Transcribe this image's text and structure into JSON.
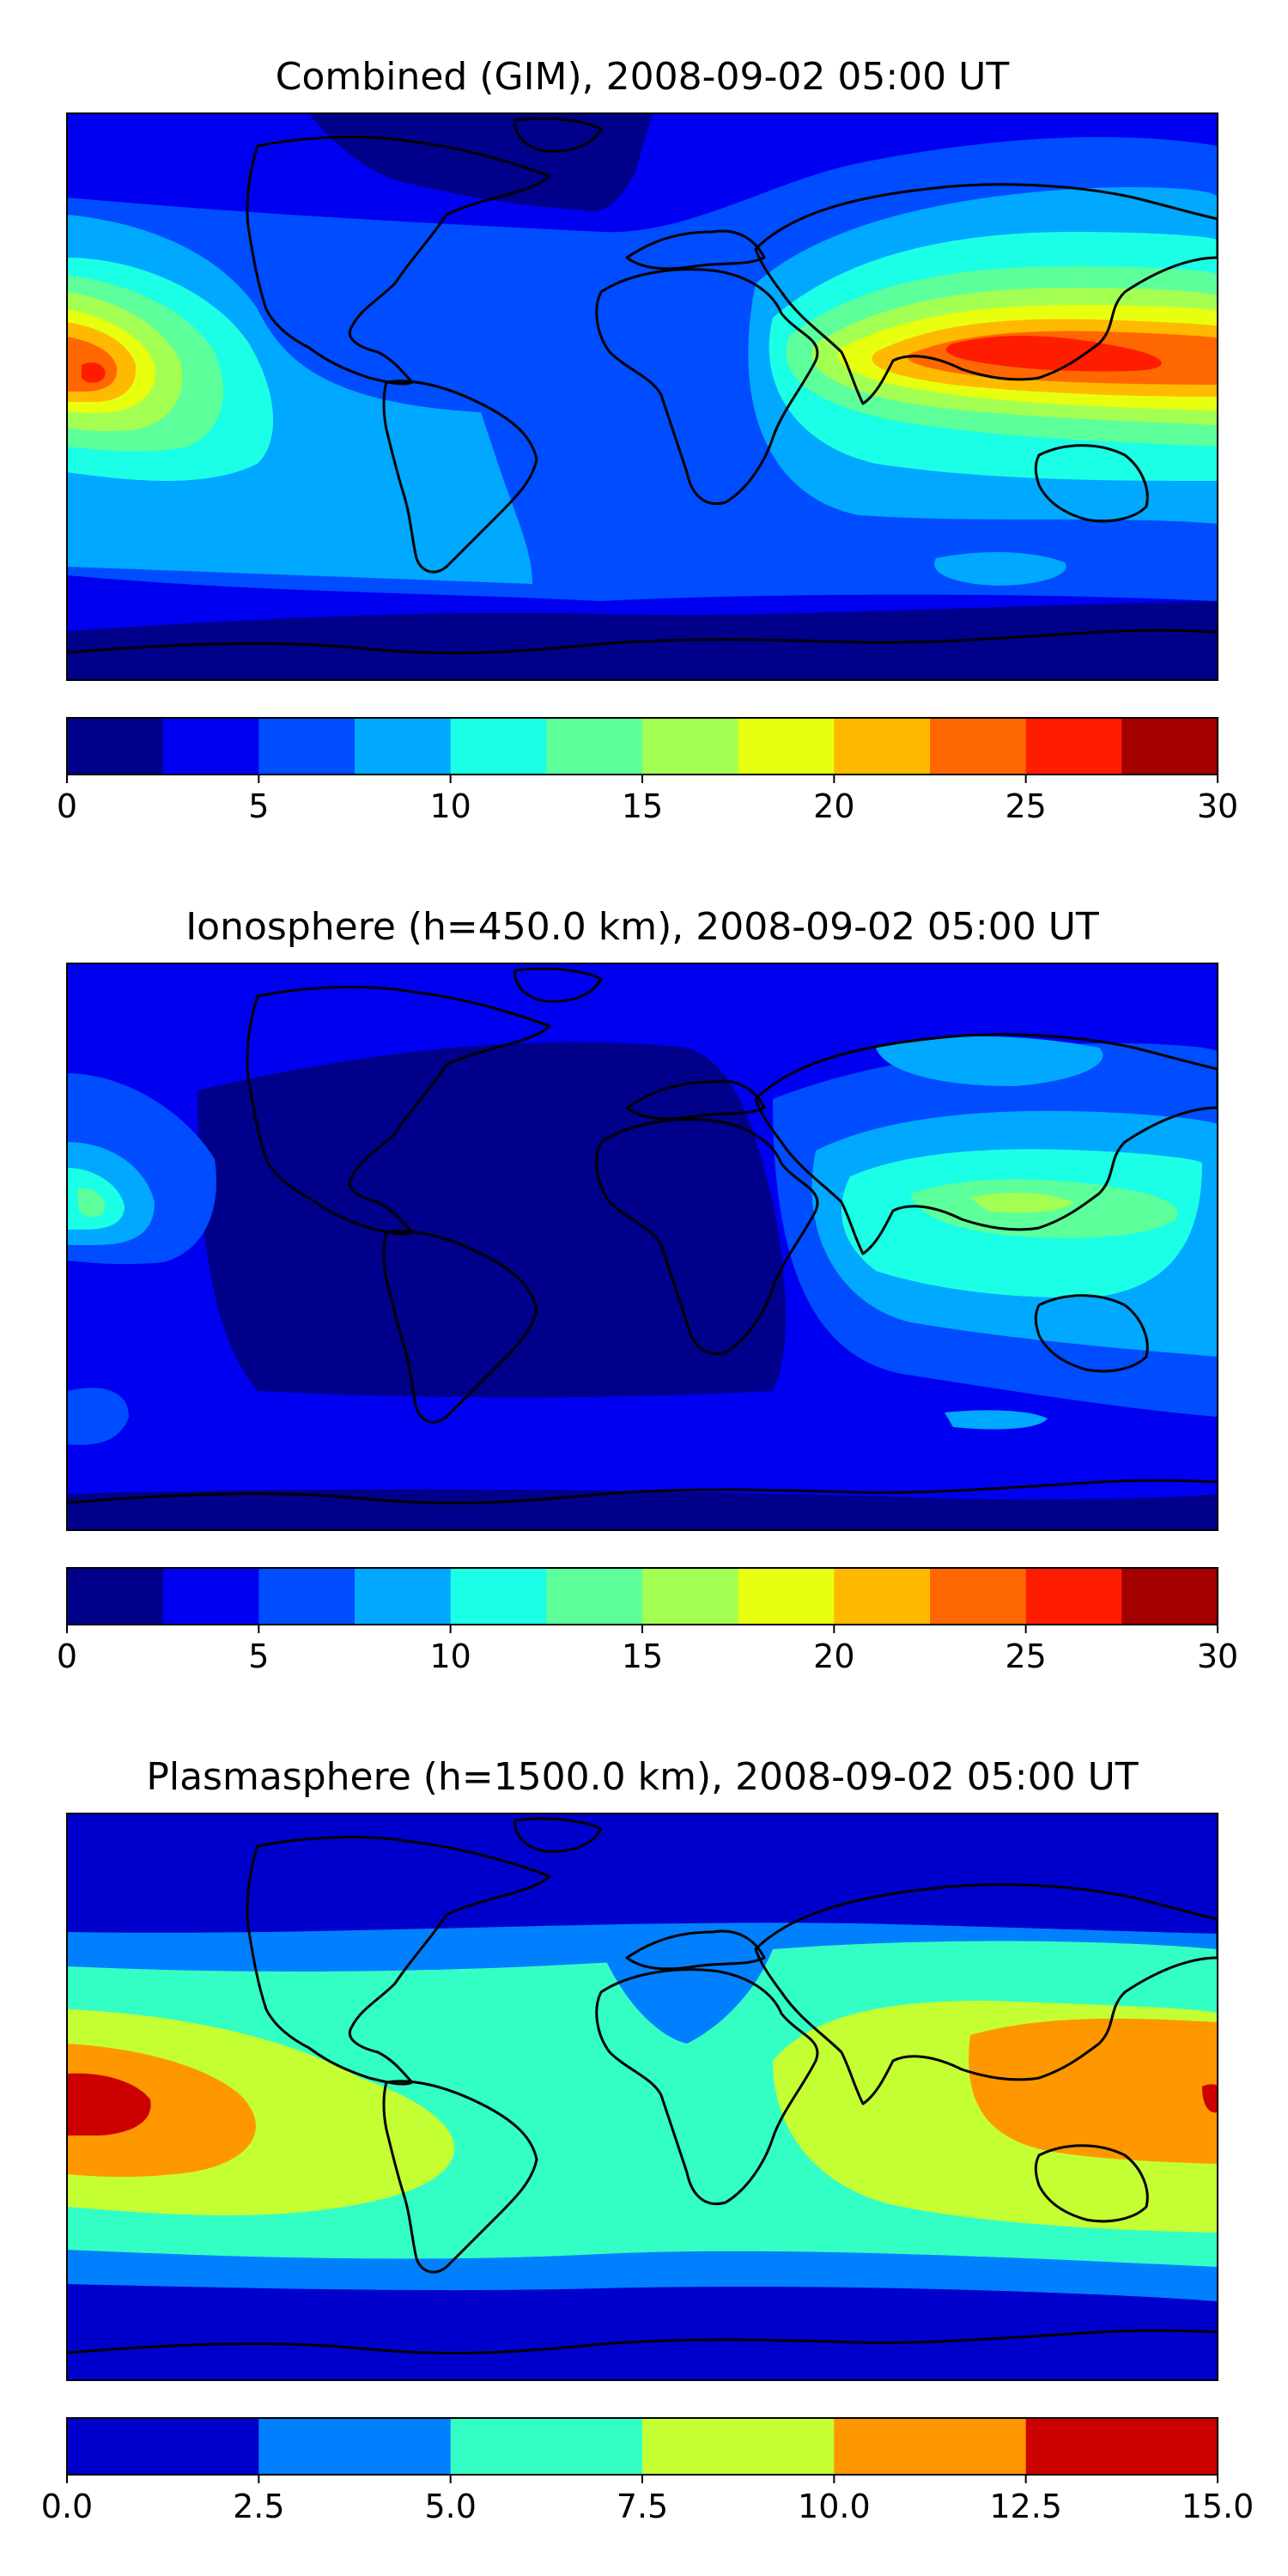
{
  "chart_data": [
    {
      "type": "heatmap",
      "title": "Combined (GIM), 2008-09-02 05:00 UT",
      "map": "world-coastlines",
      "colormap": "jet",
      "levels": [
        0,
        2.5,
        5,
        7.5,
        10,
        12.5,
        15,
        17.5,
        20,
        22.5,
        25,
        27.5,
        30
      ],
      "colors": [
        "#00008a",
        "#0000f1",
        "#004cff",
        "#00a8ff",
        "#1affe5",
        "#5dff9a",
        "#a4ff53",
        "#e8ff0f",
        "#ffb900",
        "#ff6800",
        "#ff1d00",
        "#a40000"
      ],
      "colorbar": {
        "ticks": [
          0,
          5,
          10,
          15,
          20,
          25,
          30
        ],
        "tick_labels": [
          "0",
          "5",
          "10",
          "15",
          "20",
          "25",
          "30"
        ]
      },
      "features": [
        {
          "name": "Central Pacific maximum",
          "level": 24
        },
        {
          "name": "Southeast Asia maximum",
          "level": 26
        },
        {
          "name": "Polar minima",
          "level": 2
        }
      ]
    },
    {
      "type": "heatmap",
      "title": "Ionosphere  (h=450.0 km), 2008-09-02 05:00 UT",
      "map": "world-coastlines",
      "colormap": "jet",
      "levels": [
        0,
        2.5,
        5,
        7.5,
        10,
        12.5,
        15,
        17.5,
        20,
        22.5,
        25,
        27.5,
        30
      ],
      "colors": [
        "#00008a",
        "#0000f1",
        "#004cff",
        "#00a8ff",
        "#1affe5",
        "#5dff9a",
        "#a4ff53",
        "#e8ff0f",
        "#ffb900",
        "#ff6800",
        "#ff1d00",
        "#a40000"
      ],
      "colorbar": {
        "ticks": [
          0,
          5,
          10,
          15,
          20,
          25,
          30
        ],
        "tick_labels": [
          "0",
          "5",
          "10",
          "15",
          "20",
          "25",
          "30"
        ]
      },
      "features": [
        {
          "name": "Southeast Asia maximum",
          "level": 15
        },
        {
          "name": "Central Pacific maximum",
          "level": 14
        },
        {
          "name": "Atlantic / Americas minimum",
          "level": 1
        }
      ]
    },
    {
      "type": "heatmap",
      "title": "Plasmasphere (h=1500.0 km), 2008-09-02 05:00 UT",
      "map": "world-coastlines",
      "colormap": "jet",
      "levels": [
        0,
        2.5,
        5,
        7.5,
        10,
        12.5,
        15
      ],
      "colors": [
        "#0000cd",
        "#0080ff",
        "#33ffc4",
        "#c4ff33",
        "#ff9700",
        "#cd0000"
      ],
      "colorbar": {
        "ticks": [
          0,
          2.5,
          5,
          7.5,
          10,
          12.5,
          15
        ],
        "tick_labels": [
          "0.0",
          "2.5",
          "5.0",
          "7.5",
          "10.0",
          "12.5",
          "15.0"
        ]
      },
      "features": [
        {
          "name": "Central Pacific maximum",
          "level": 13.5
        },
        {
          "name": "Western Pacific / Indonesia maximum",
          "level": 11
        },
        {
          "name": "Equatorial band",
          "level": 8
        },
        {
          "name": "Polar minima",
          "level": 1
        }
      ]
    }
  ]
}
